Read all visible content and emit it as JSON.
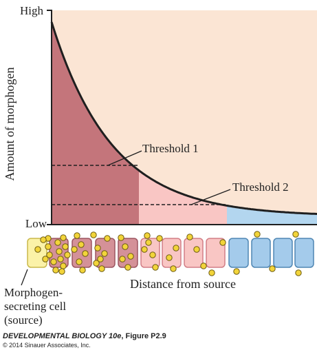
{
  "axis": {
    "y_label": "Amount of morphogen",
    "y_high": "High",
    "y_low": "Low",
    "x_label": "Distance from source"
  },
  "thresholds": [
    {
      "label": "Threshold 1"
    },
    {
      "label": "Threshold 2"
    }
  ],
  "source_label": [
    "Morphogen-",
    "secreting cell",
    "(source)"
  ],
  "caption": {
    "book": "DEVELOPMENTAL BIOLOGY 10e",
    "figure": ", Figure P2.9",
    "copyright": "© 2014 Sinauer Associates, Inc."
  },
  "colors": {
    "background": "#fbe5d4",
    "zone_high": "#c4757b",
    "zone_mid": "#f9c6c4",
    "zone_low": "#b3d6ef",
    "curve": "#1f1f1f",
    "source_cell": "#fbf2a8",
    "red_cell": "#d49198",
    "pink_cell": "#f9c6c4",
    "blue_cell": "#a4cbeb",
    "morphogen": "#f2d43a"
  }
}
